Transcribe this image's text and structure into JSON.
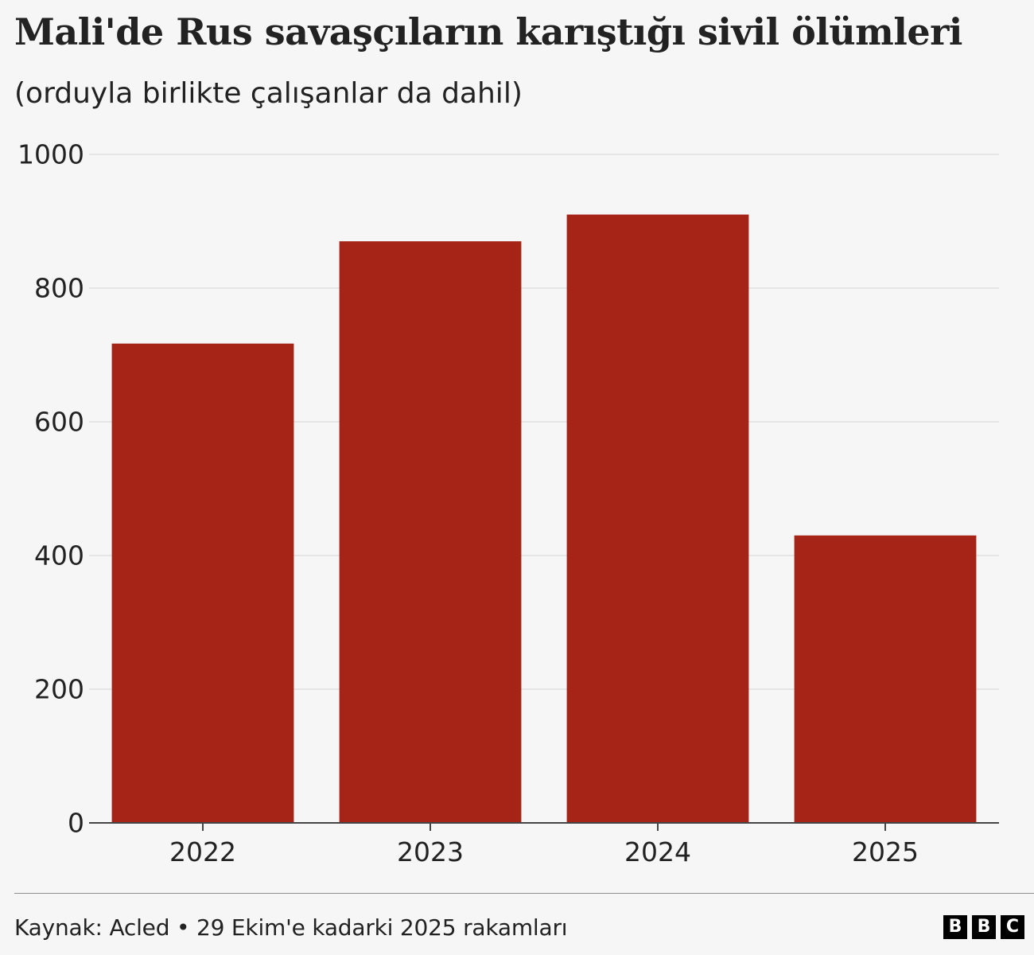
{
  "header": {
    "title": "Mali'de Rus savaşçıların karıştığı sivil ölümleri",
    "subtitle": "(orduyla birlikte çalışanlar da dahil)"
  },
  "chart_data": {
    "type": "bar",
    "title": "Mali'de Rus savaşçıların karıştığı sivil ölümleri",
    "subtitle": "(orduyla birlikte çalışanlar da dahil)",
    "categories": [
      "2022",
      "2023",
      "2024",
      "2025"
    ],
    "values": [
      717,
      870,
      910,
      430
    ],
    "ylim": [
      0,
      1000
    ],
    "yticks": [
      0,
      200,
      400,
      600,
      800,
      1000
    ],
    "grid": true,
    "bar_color": "#a62317"
  },
  "footer": {
    "source": "Kaynak: Acled • 29 Ekim'e kadarki 2025 rakamları",
    "logo_letters": [
      "B",
      "B",
      "C"
    ]
  }
}
